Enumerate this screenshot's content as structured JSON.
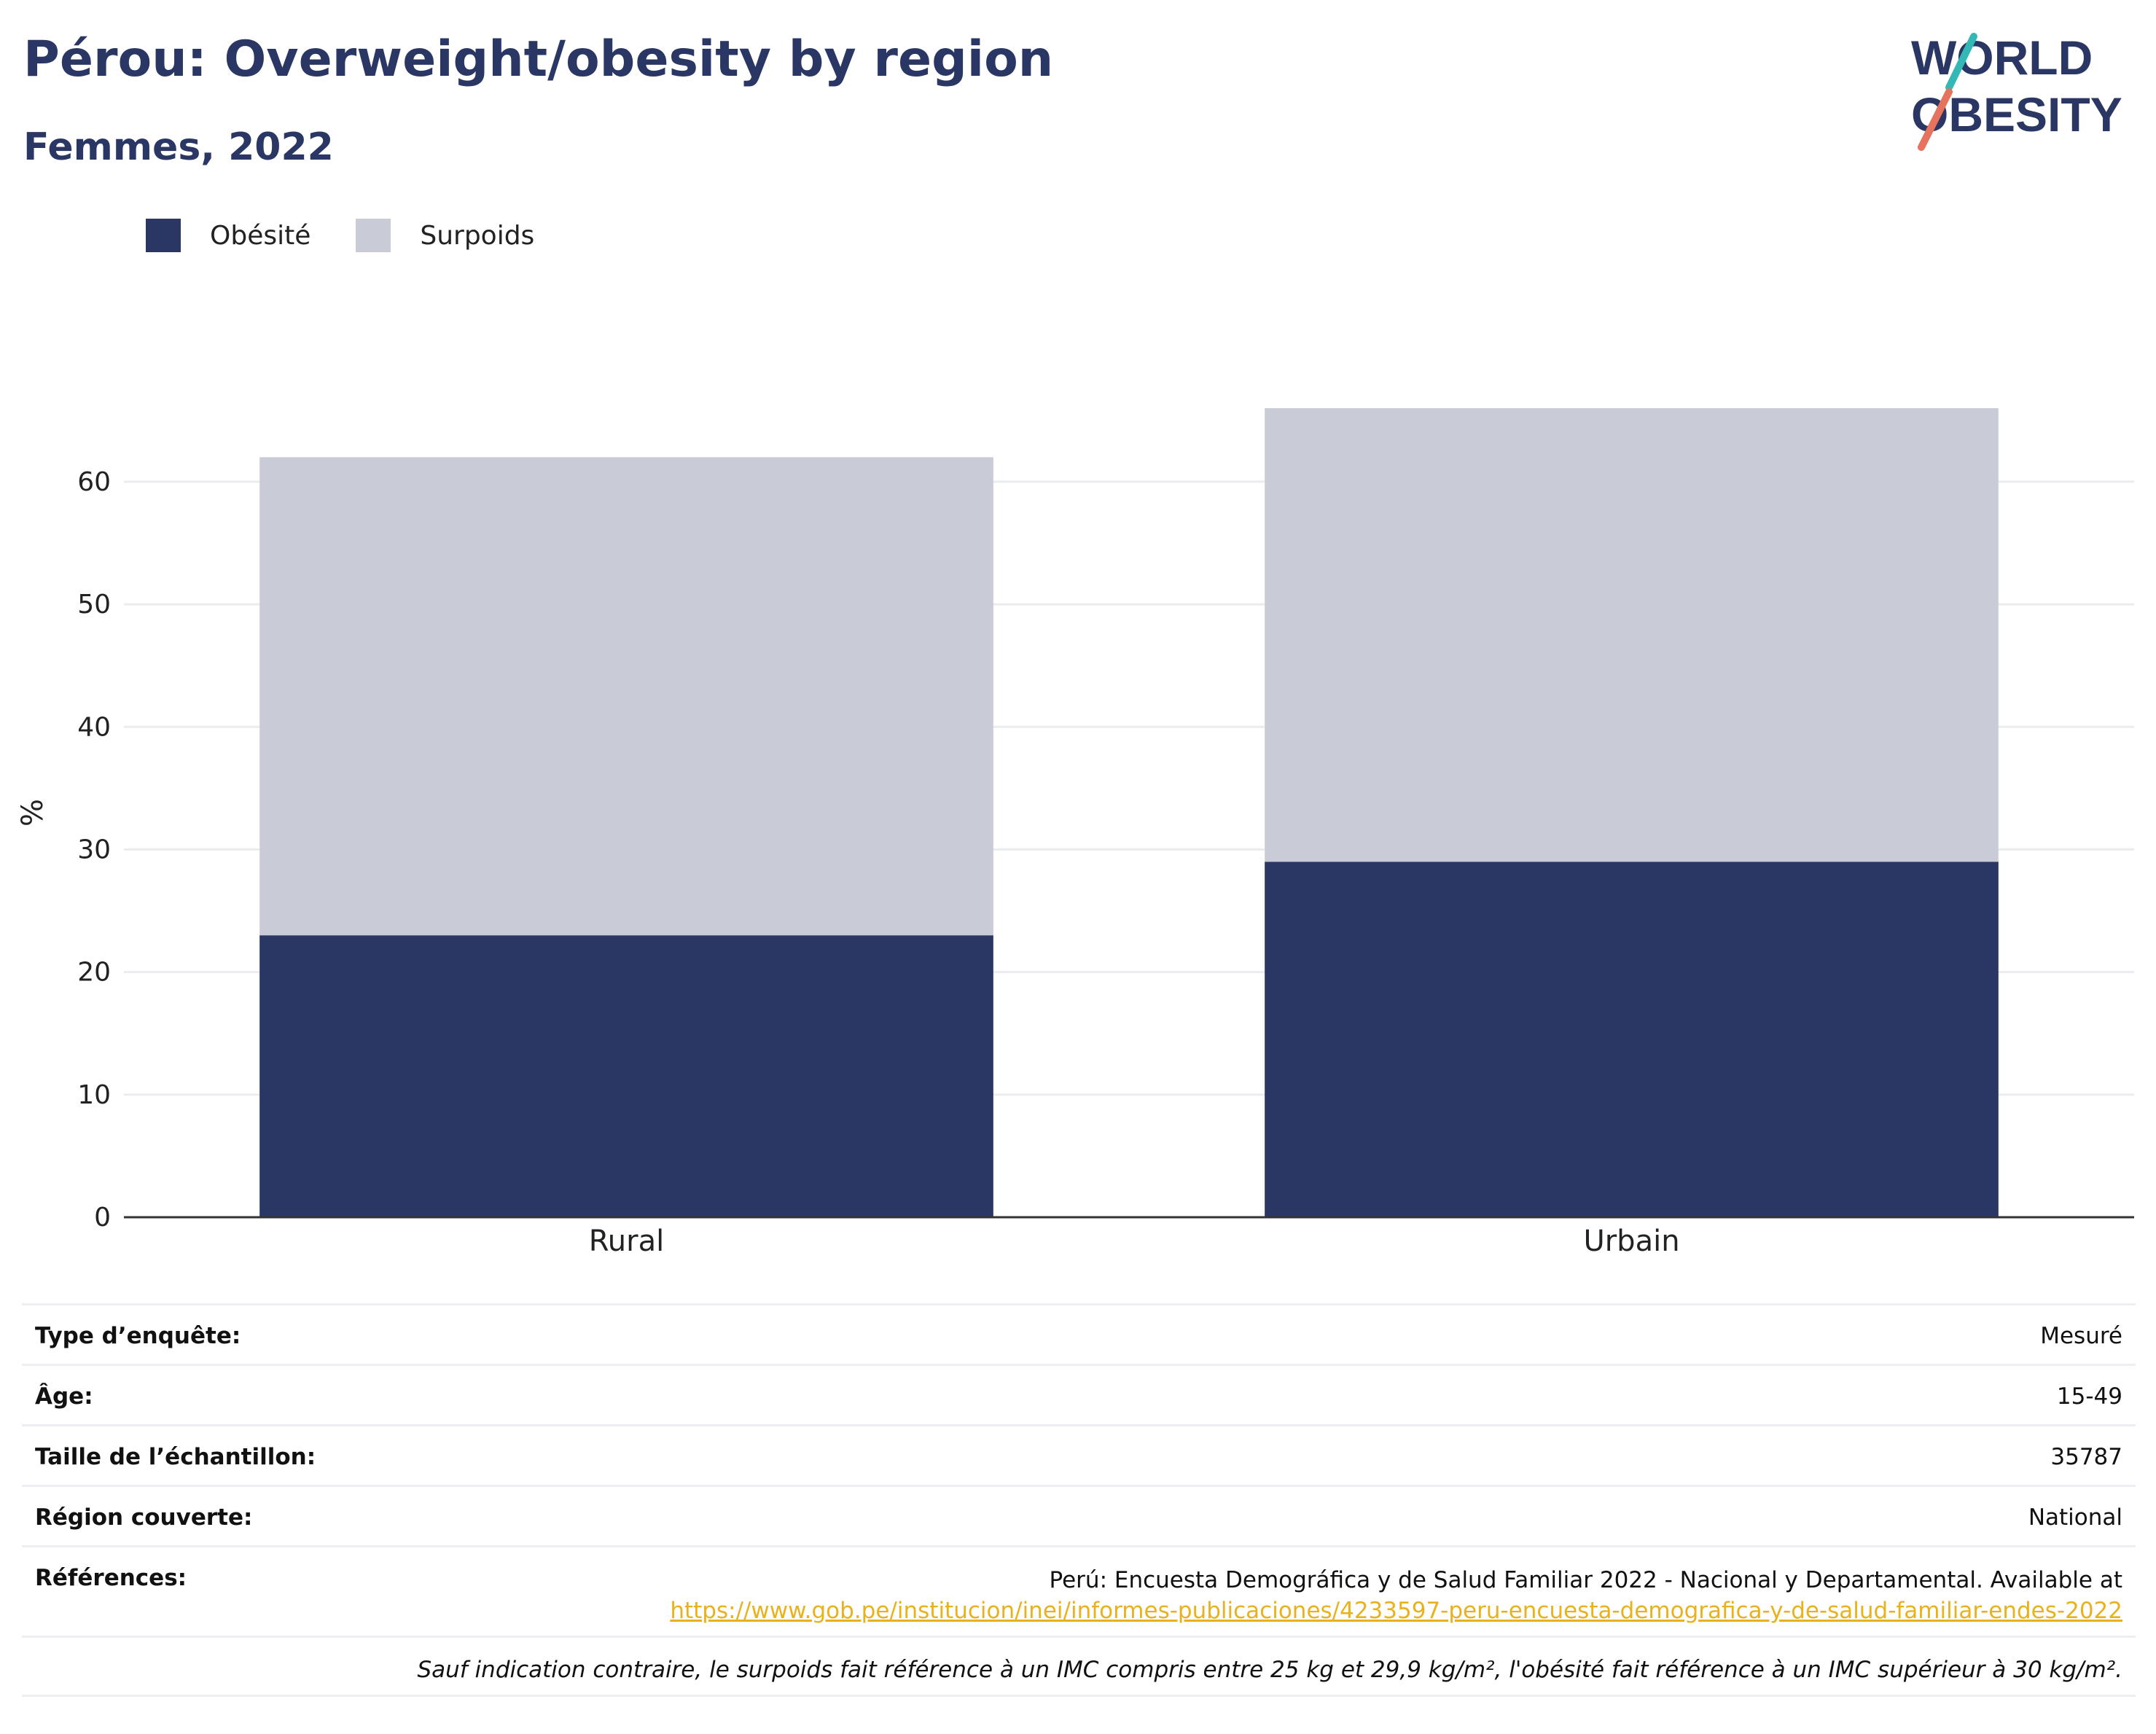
{
  "header": {
    "title": "Pérou: Overweight/obesity by region",
    "subtitle": "Femmes, 2022"
  },
  "logo": {
    "line1": "WORLD",
    "line2": "OBESITY"
  },
  "legend": [
    {
      "label": "Obésité",
      "color": "#2a3764"
    },
    {
      "label": "Surpoids",
      "color": "#c9ccd7"
    }
  ],
  "chart_data": {
    "type": "bar",
    "stacked": true,
    "categories": [
      "Rural",
      "Urbain"
    ],
    "series": [
      {
        "name": "Obésité",
        "color": "#2a3764",
        "values": [
          23,
          29
        ]
      },
      {
        "name": "Surpoids",
        "color": "#c9ccd7",
        "values": [
          39,
          37
        ]
      }
    ],
    "ylabel": "%",
    "ylim": [
      0,
      66
    ],
    "yticks": [
      0,
      10,
      20,
      30,
      40,
      50,
      60
    ],
    "grid": true,
    "legend_position": "top-left"
  },
  "info_table": {
    "survey_type": {
      "label": "Type d’enquête:",
      "value": "Mesuré"
    },
    "age": {
      "label": "Âge:",
      "value": "15-49"
    },
    "sample_size": {
      "label": "Taille de l’échantillon:",
      "value": "35787"
    },
    "region": {
      "label": "Région couverte:",
      "value": "National"
    },
    "references": {
      "label": "Références:",
      "text": "Perú: Encuesta Demográfica y de Salud Familiar 2022 - Nacional y Departamental. Available at",
      "link": "https://www.gob.pe/institucion/inei/informes-publicaciones/4233597-peru-encuesta-demografica-y-de-salud-familiar-endes-2022"
    },
    "note": "Sauf indication contraire, le surpoids fait référence à un IMC compris entre 25 kg et 29,9 kg/m², l'obésité fait référence à un IMC supérieur à 30 kg/m²."
  }
}
